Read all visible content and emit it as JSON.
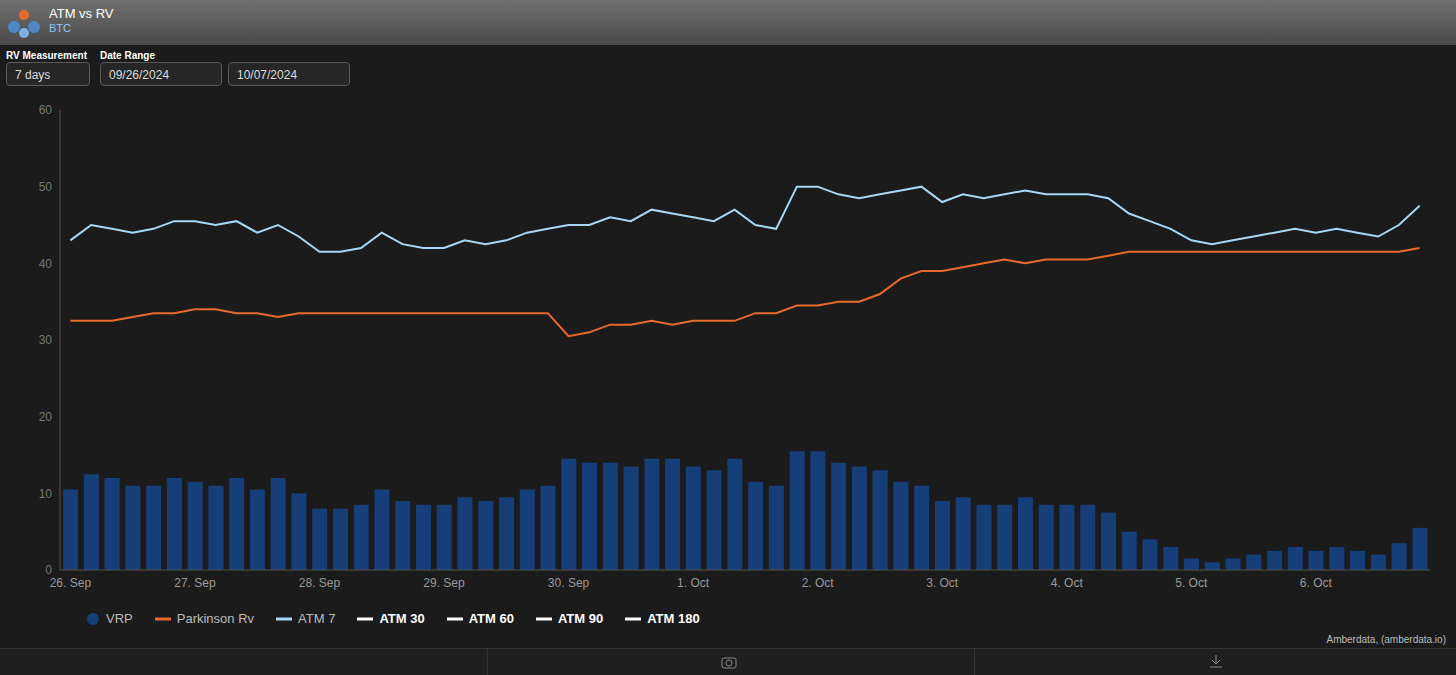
{
  "chart_data": {
    "type": "bar",
    "title": "ATM vs RV",
    "subtitle": "BTC",
    "annotations": [
      "RV Measurement",
      "7 days",
      "Date Range",
      "09/26/2024",
      "10/07/2024",
      "Amberdata, (amberdata.io)"
    ],
    "categories": [
      "26. Sep",
      null,
      null,
      null,
      null,
      null,
      "27. Sep",
      null,
      null,
      null,
      null,
      null,
      "28. Sep",
      null,
      null,
      null,
      null,
      null,
      "29. Sep",
      null,
      null,
      null,
      null,
      null,
      "30. Sep",
      null,
      null,
      null,
      null,
      null,
      "1. Oct",
      null,
      null,
      null,
      null,
      null,
      "2. Oct",
      null,
      null,
      null,
      null,
      null,
      "3. Oct",
      null,
      null,
      null,
      null,
      null,
      "4. Oct",
      null,
      null,
      null,
      null,
      null,
      "5. Oct",
      null,
      null,
      null,
      null,
      null,
      "6. Oct",
      null,
      null,
      null,
      null,
      null
    ],
    "ylim": [
      0,
      60
    ],
    "yticks": [
      0,
      10,
      20,
      30,
      40,
      50,
      60
    ],
    "grid": false,
    "legend": "bottom",
    "series": [
      {
        "name": "VRP",
        "type": "bar",
        "color": "#163e78",
        "values": [
          10.5,
          12.5,
          12,
          11,
          11,
          12,
          11.5,
          11,
          12,
          10.5,
          12,
          10,
          8,
          8,
          8.5,
          10.5,
          9,
          8.5,
          8.5,
          9.5,
          9,
          9.5,
          10.5,
          11,
          14.5,
          14,
          14,
          13.5,
          14.5,
          14.5,
          13.5,
          13,
          14.5,
          11.5,
          11,
          15.5,
          15.5,
          14,
          13.5,
          13,
          11.5,
          11,
          9,
          9.5,
          8.5,
          8.5,
          9.5,
          8.5,
          8.5,
          8.5,
          7.5,
          5,
          4,
          3,
          1.5,
          1,
          1.5,
          2,
          2.5,
          3,
          2.5,
          3,
          2.5,
          2,
          3.5,
          5.5
        ]
      },
      {
        "name": "Parkinson Rv",
        "type": "line",
        "color": "#e8692c",
        "values": [
          32.5,
          32.5,
          32.5,
          33,
          33.5,
          33.5,
          34,
          34,
          33.5,
          33.5,
          33,
          33.5,
          33.5,
          33.5,
          33.5,
          33.5,
          33.5,
          33.5,
          33.5,
          33.5,
          33.5,
          33.5,
          33.5,
          33.5,
          30.5,
          31,
          32,
          32,
          32.5,
          32,
          32.5,
          32.5,
          32.5,
          33.5,
          33.5,
          34.5,
          34.5,
          35,
          35,
          36,
          38,
          39,
          39,
          39.5,
          40,
          40.5,
          40,
          40.5,
          40.5,
          40.5,
          41,
          41.5,
          41.5,
          41.5,
          41.5,
          41.5,
          41.5,
          41.5,
          41.5,
          41.5,
          41.5,
          41.5,
          41.5,
          41.5,
          41.5,
          42
        ]
      },
      {
        "name": "ATM 7",
        "type": "line",
        "color": "#a8d8f8",
        "values": [
          43,
          45,
          44.5,
          44,
          44.5,
          45.5,
          45.5,
          45,
          45.5,
          44,
          45,
          43.5,
          41.5,
          41.5,
          42,
          44,
          42.5,
          42,
          42,
          43,
          42.5,
          43,
          44,
          44.5,
          45,
          45,
          46,
          45.5,
          47,
          46.5,
          46,
          45.5,
          47,
          45,
          44.5,
          50,
          50,
          49,
          48.5,
          49,
          49.5,
          50,
          48,
          49,
          48.5,
          49,
          49.5,
          49,
          49,
          49,
          48.5,
          46.5,
          45.5,
          44.5,
          43,
          42.5,
          43,
          43.5,
          44,
          44.5,
          44,
          44.5,
          44,
          43.5,
          45,
          47.5
        ]
      },
      {
        "name": "ATM 30",
        "type": "line",
        "color": "#ffffff",
        "values": [
          null,
          null,
          null,
          null,
          null,
          null,
          null,
          null,
          null,
          null,
          null,
          null,
          null,
          null,
          null,
          null,
          null,
          null,
          null,
          null,
          null,
          null,
          null,
          null,
          null,
          null,
          null,
          null,
          null,
          null,
          null,
          null,
          null,
          null,
          null,
          null,
          null,
          null,
          null,
          null,
          null,
          null,
          null,
          null,
          null,
          null,
          null,
          null,
          null,
          null,
          null,
          null,
          null,
          null,
          null,
          null,
          null,
          null,
          null,
          null,
          null,
          null,
          null,
          null,
          null,
          null
        ]
      },
      {
        "name": "ATM 60",
        "type": "line",
        "color": "#ffffff",
        "values": [
          null,
          null,
          null,
          null,
          null,
          null,
          null,
          null,
          null,
          null,
          null,
          null,
          null,
          null,
          null,
          null,
          null,
          null,
          null,
          null,
          null,
          null,
          null,
          null,
          null,
          null,
          null,
          null,
          null,
          null,
          null,
          null,
          null,
          null,
          null,
          null,
          null,
          null,
          null,
          null,
          null,
          null,
          null,
          null,
          null,
          null,
          null,
          null,
          null,
          null,
          null,
          null,
          null,
          null,
          null,
          null,
          null,
          null,
          null,
          null,
          null,
          null,
          null,
          null,
          null,
          null
        ]
      },
      {
        "name": "ATM 90",
        "type": "line",
        "color": "#ffffff",
        "values": [
          null,
          null,
          null,
          null,
          null,
          null,
          null,
          null,
          null,
          null,
          null,
          null,
          null,
          null,
          null,
          null,
          null,
          null,
          null,
          null,
          null,
          null,
          null,
          null,
          null,
          null,
          null,
          null,
          null,
          null,
          null,
          null,
          null,
          null,
          null,
          null,
          null,
          null,
          null,
          null,
          null,
          null,
          null,
          null,
          null,
          null,
          null,
          null,
          null,
          null,
          null,
          null,
          null,
          null,
          null,
          null,
          null,
          null,
          null,
          null,
          null,
          null,
          null,
          null,
          null,
          null
        ]
      },
      {
        "name": "ATM 180",
        "type": "line",
        "color": "#ffffff",
        "values": [
          null,
          null,
          null,
          null,
          null,
          null,
          null,
          null,
          null,
          null,
          null,
          null,
          null,
          null,
          null,
          null,
          null,
          null,
          null,
          null,
          null,
          null,
          null,
          null,
          null,
          null,
          null,
          null,
          null,
          null,
          null,
          null,
          null,
          null,
          null,
          null,
          null,
          null,
          null,
          null,
          null,
          null,
          null,
          null,
          null,
          null,
          null,
          null,
          null,
          null,
          null,
          null,
          null,
          null,
          null,
          null,
          null,
          null,
          null,
          null,
          null,
          null,
          null,
          null,
          null,
          null
        ]
      }
    ]
  }
}
